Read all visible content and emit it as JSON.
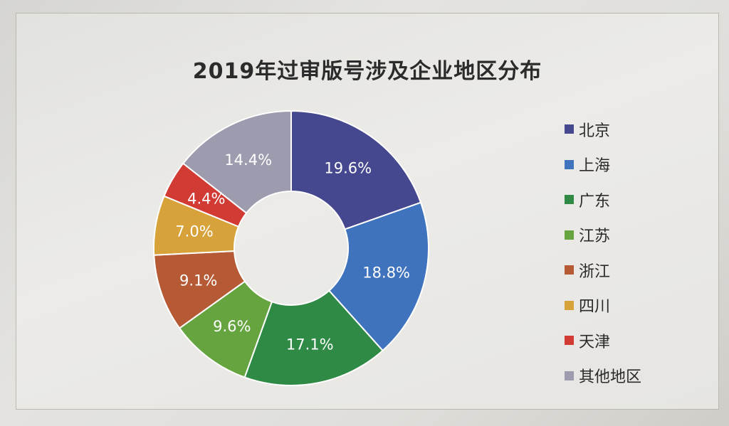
{
  "chart_data": {
    "type": "pie",
    "title": "2019年过审版号涉及企业地区分布",
    "categories": [
      "北京",
      "上海",
      "广东",
      "江苏",
      "浙江",
      "四川",
      "天津",
      "其他地区"
    ],
    "values": [
      19.6,
      18.8,
      17.1,
      9.6,
      9.1,
      7.0,
      4.4,
      14.4
    ],
    "data_labels": [
      "19.6%",
      "18.8%",
      "17.1%",
      "9.6%",
      "9.1%",
      "7.0%",
      "4.4%",
      "14.4%"
    ],
    "colors": [
      "#45478f",
      "#3f73bd",
      "#2f8a46",
      "#66a43f",
      "#b55a35",
      "#d8a23a",
      "#d23a34",
      "#9c9cae"
    ],
    "donut": true,
    "legend": "right"
  }
}
